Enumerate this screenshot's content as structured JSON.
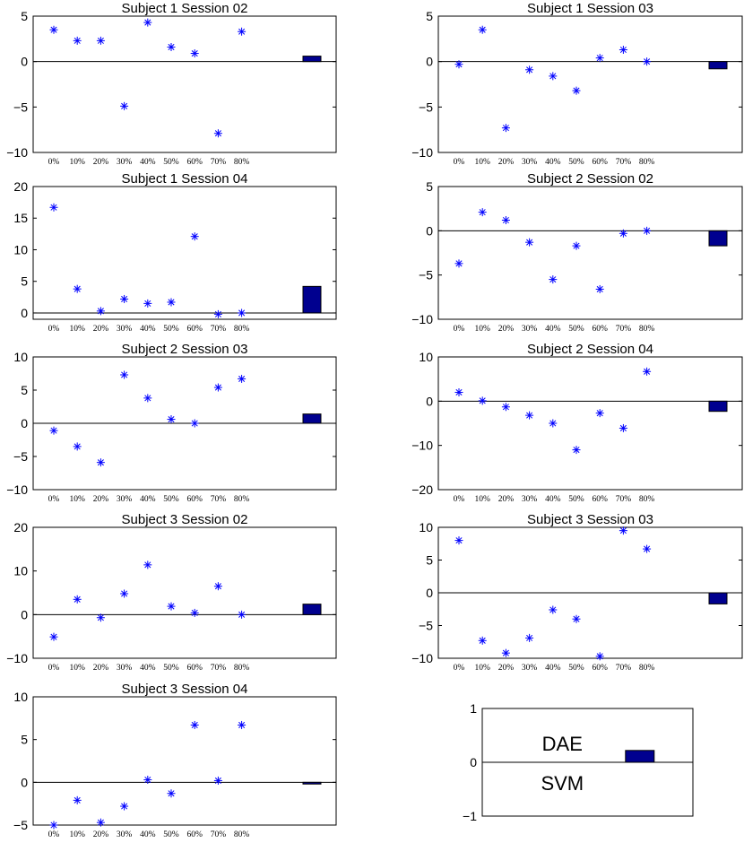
{
  "colors": {
    "marker": "#0000ff",
    "bar_fill": "#00008f",
    "bar_stroke": "#000000",
    "axes": "#000000",
    "background": "#ffffff"
  },
  "chart_data": [
    {
      "type": "scatter",
      "title": "Subject 1 Session 02",
      "categories": [
        "0%",
        "10%",
        "20%",
        "30%",
        "40%",
        "50%",
        "60%",
        "70%",
        "80%"
      ],
      "values": [
        3.5,
        2.3,
        2.3,
        -4.9,
        4.3,
        1.6,
        0.9,
        -7.9,
        3.3
      ],
      "bar_value": 0.6,
      "ylim": [
        -10,
        5
      ],
      "yticks": [
        -10,
        -5,
        0,
        5
      ],
      "marker": "asterisk",
      "zero_line": true,
      "grid": false
    },
    {
      "type": "scatter",
      "title": "Subject 1 Session 03",
      "categories": [
        "0%",
        "10%",
        "20%",
        "30%",
        "40%",
        "50%",
        "60%",
        "70%",
        "80%"
      ],
      "values": [
        -0.3,
        3.5,
        -7.3,
        -0.9,
        -1.6,
        -3.2,
        0.4,
        1.3,
        0.0
      ],
      "bar_value": -0.8,
      "ylim": [
        -10,
        5
      ],
      "yticks": [
        -10,
        -5,
        0,
        5
      ],
      "marker": "asterisk",
      "zero_line": true,
      "grid": false
    },
    {
      "type": "scatter",
      "title": "Subject 1 Session 04",
      "categories": [
        "0%",
        "10%",
        "20%",
        "30%",
        "40%",
        "50%",
        "60%",
        "70%",
        "80%"
      ],
      "values": [
        16.7,
        3.8,
        0.3,
        2.2,
        1.5,
        1.7,
        12.1,
        -0.2,
        0.0
      ],
      "bar_value": 4.2,
      "ylim": [
        -1,
        20
      ],
      "yticks": [
        0,
        5,
        10,
        15,
        20
      ],
      "marker": "asterisk",
      "zero_line": true,
      "grid": false
    },
    {
      "type": "scatter",
      "title": "Subject 2 Session 02",
      "categories": [
        "0%",
        "10%",
        "20%",
        "30%",
        "40%",
        "50%",
        "60%",
        "70%",
        "80%"
      ],
      "values": [
        -3.7,
        2.1,
        1.2,
        -1.3,
        -5.5,
        -1.7,
        -6.6,
        -0.3,
        0.0
      ],
      "bar_value": -1.7,
      "ylim": [
        -10,
        5
      ],
      "yticks": [
        -10,
        -5,
        0,
        5
      ],
      "marker": "asterisk",
      "zero_line": true,
      "grid": false
    },
    {
      "type": "scatter",
      "title": "Subject 2 Session 03",
      "categories": [
        "0%",
        "10%",
        "20%",
        "30%",
        "40%",
        "50%",
        "60%",
        "70%",
        "80%"
      ],
      "values": [
        -1.1,
        -3.5,
        -5.9,
        7.3,
        3.8,
        0.6,
        0.0,
        5.4,
        6.7
      ],
      "bar_value": 1.4,
      "ylim": [
        -10,
        10
      ],
      "yticks": [
        -10,
        -5,
        0,
        5,
        10
      ],
      "marker": "asterisk",
      "zero_line": true,
      "grid": false
    },
    {
      "type": "scatter",
      "title": "Subject 2 Session 04",
      "categories": [
        "0%",
        "10%",
        "20%",
        "30%",
        "40%",
        "50%",
        "60%",
        "70%",
        "80%"
      ],
      "values": [
        2.0,
        0.1,
        -1.3,
        -3.2,
        -5.0,
        -11.0,
        -2.7,
        -6.1,
        6.7
      ],
      "bar_value": -2.3,
      "ylim": [
        -20,
        10
      ],
      "yticks": [
        -20,
        -10,
        0,
        10
      ],
      "marker": "asterisk",
      "zero_line": true,
      "grid": false
    },
    {
      "type": "scatter",
      "title": "Subject 3 Session 02",
      "categories": [
        "0%",
        "10%",
        "20%",
        "30%",
        "40%",
        "50%",
        "60%",
        "70%",
        "80%"
      ],
      "values": [
        -5.1,
        3.5,
        -0.7,
        4.8,
        11.4,
        1.9,
        0.4,
        6.5,
        0.0
      ],
      "bar_value": 2.4,
      "ylim": [
        -10,
        20
      ],
      "yticks": [
        -10,
        0,
        10,
        20
      ],
      "marker": "asterisk",
      "zero_line": true,
      "grid": false
    },
    {
      "type": "scatter",
      "title": "Subject 3 Session 03",
      "categories": [
        "0%",
        "10%",
        "20%",
        "30%",
        "40%",
        "50%",
        "60%",
        "70%",
        "80%"
      ],
      "values": [
        8.0,
        -7.3,
        -9.2,
        -6.9,
        -2.6,
        -4.0,
        -9.7,
        9.5,
        6.7
      ],
      "bar_value": -1.7,
      "ylim": [
        -10,
        10
      ],
      "yticks": [
        -10,
        -5,
        0,
        5,
        10
      ],
      "marker": "asterisk",
      "zero_line": true,
      "grid": false
    },
    {
      "type": "scatter",
      "title": "Subject 3 Session 04",
      "categories": [
        "0%",
        "10%",
        "20%",
        "30%",
        "40%",
        "50%",
        "60%",
        "70%",
        "80%"
      ],
      "values": [
        -5.0,
        -2.1,
        -4.7,
        -2.8,
        0.3,
        -1.3,
        6.7,
        0.2,
        6.7
      ],
      "bar_value": -0.2,
      "ylim": [
        -5,
        10
      ],
      "yticks": [
        -5,
        0,
        5,
        10
      ],
      "marker": "asterisk",
      "zero_line": true,
      "grid": false
    },
    {
      "type": "bar",
      "title": "",
      "role": "legend",
      "bar_value": 0.22,
      "ylim": [
        -1,
        1
      ],
      "yticks": [
        -1,
        0,
        1
      ],
      "zero_line": true,
      "labels": {
        "above": "DAE",
        "below": "SVM"
      }
    }
  ]
}
